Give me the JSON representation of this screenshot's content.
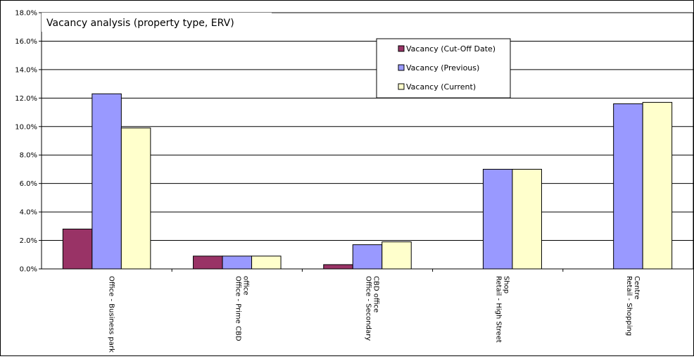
{
  "chart_data": {
    "type": "bar",
    "title": "Vacancy analysis (property type, ERV)",
    "xlabel": "",
    "ylabel": "",
    "ylim": [
      0,
      0.18
    ],
    "yticks": [
      0.0,
      0.02,
      0.04,
      0.06,
      0.08,
      0.1,
      0.12,
      0.14,
      0.16,
      0.18
    ],
    "ytick_labels": [
      "0.0%",
      "2.0%",
      "4.0%",
      "6.0%",
      "8.0%",
      "10.0%",
      "12.0%",
      "14.0%",
      "16.0%",
      "18.0%"
    ],
    "grid": true,
    "legend_position": "top-right",
    "categories": [
      [
        "Office - Business park"
      ],
      [
        "Office - Prime CBD",
        "office"
      ],
      [
        "Office - Secondary",
        "CBD office"
      ],
      [
        "Retail - High Street",
        "Shop"
      ],
      [
        "Retail - Shopping",
        "Centre"
      ]
    ],
    "series": [
      {
        "name": "Vacancy (Cut-Off Date)",
        "color": "#993366",
        "values": [
          0.028,
          0.009,
          0.003,
          0.0,
          0.0
        ]
      },
      {
        "name": "Vacancy (Previous)",
        "color": "#9999ff",
        "values": [
          0.123,
          0.009,
          0.017,
          0.07,
          0.116
        ]
      },
      {
        "name": "Vacancy (Current)",
        "color": "#ffffcc",
        "values": [
          0.099,
          0.009,
          0.019,
          0.07,
          0.117
        ]
      }
    ]
  }
}
